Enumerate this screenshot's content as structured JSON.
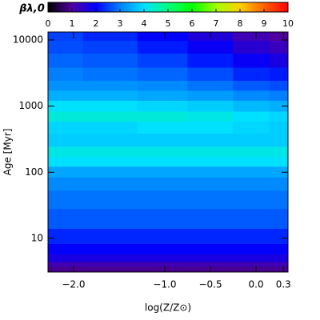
{
  "chart_data": {
    "type": "heatmap",
    "x_label": "log(Z/Z⊙)",
    "y_label": "Age [Myr]",
    "x": [
      -2.2,
      -1.6,
      -1.0,
      -0.5,
      0.0,
      0.3
    ],
    "y": [
      3.5,
      4,
      5,
      7,
      10,
      20,
      40,
      70,
      100,
      150,
      200,
      300,
      500,
      700,
      1000,
      1500,
      2000,
      3000,
      5000,
      8000,
      12000
    ],
    "values": [
      [
        0.9,
        0.9,
        0.9,
        0.9,
        0.9,
        0.9
      ],
      [
        1.2,
        1.2,
        1.2,
        1.2,
        1.2,
        1.2
      ],
      [
        1.7,
        1.7,
        1.7,
        1.7,
        1.7,
        1.7
      ],
      [
        2.0,
        2.0,
        2.0,
        2.0,
        2.0,
        2.0
      ],
      [
        2.3,
        2.3,
        2.3,
        2.3,
        2.3,
        2.3
      ],
      [
        2.7,
        2.7,
        2.7,
        2.7,
        2.7,
        2.7
      ],
      [
        2.9,
        2.9,
        2.9,
        2.9,
        2.9,
        2.9
      ],
      [
        3.1,
        3.1,
        3.1,
        3.1,
        3.1,
        3.1
      ],
      [
        3.4,
        3.4,
        3.4,
        3.4,
        3.4,
        3.4
      ],
      [
        4.0,
        4.0,
        4.0,
        4.0,
        4.0,
        4.0
      ],
      [
        4.2,
        4.2,
        4.2,
        4.2,
        4.2,
        4.2
      ],
      [
        3.8,
        3.8,
        3.8,
        3.8,
        3.8,
        3.8
      ],
      [
        3.9,
        3.9,
        4.0,
        4.0,
        3.9,
        3.8
      ],
      [
        4.3,
        4.3,
        4.3,
        4.2,
        4.0,
        3.9
      ],
      [
        4.0,
        4.0,
        3.9,
        3.8,
        3.6,
        3.5
      ],
      [
        3.5,
        3.5,
        3.4,
        3.3,
        3.1,
        3.0
      ],
      [
        3.2,
        3.2,
        3.1,
        2.9,
        2.7,
        2.6
      ],
      [
        3.0,
        2.9,
        2.8,
        2.6,
        2.3,
        2.2
      ],
      [
        2.8,
        2.7,
        2.5,
        2.2,
        1.9,
        1.7
      ],
      [
        2.6,
        2.5,
        2.2,
        1.9,
        1.5,
        1.3
      ],
      [
        2.5,
        2.3,
        2.0,
        1.6,
        1.2,
        1.0
      ]
    ],
    "xlim": [
      -2.28,
      0.35
    ],
    "xticks": [
      {
        "value": -2,
        "label": "−2.0"
      },
      {
        "value": -1,
        "label": "−1.0"
      },
      {
        "value": -0.5,
        "label": "−0.5"
      },
      {
        "value": 0,
        "label": "0.0"
      },
      0.3
    ],
    "ylim": [
      3.1,
      13200
    ],
    "yticks": [
      10,
      100,
      1000,
      10000
    ],
    "y_log": true,
    "colorbar": {
      "label": "βλ,0",
      "lim": [
        0,
        10
      ],
      "ticks": [
        0,
        1,
        2,
        3,
        4,
        5,
        6,
        7,
        8,
        9,
        10
      ],
      "colormap": [
        "#000000",
        "#5000a0",
        "#0000ff",
        "#0080ff",
        "#00e0ff",
        "#00ff80",
        "#00ff00",
        "#a0ff00",
        "#ffd000",
        "#ff6000",
        "#ff0000"
      ]
    }
  }
}
